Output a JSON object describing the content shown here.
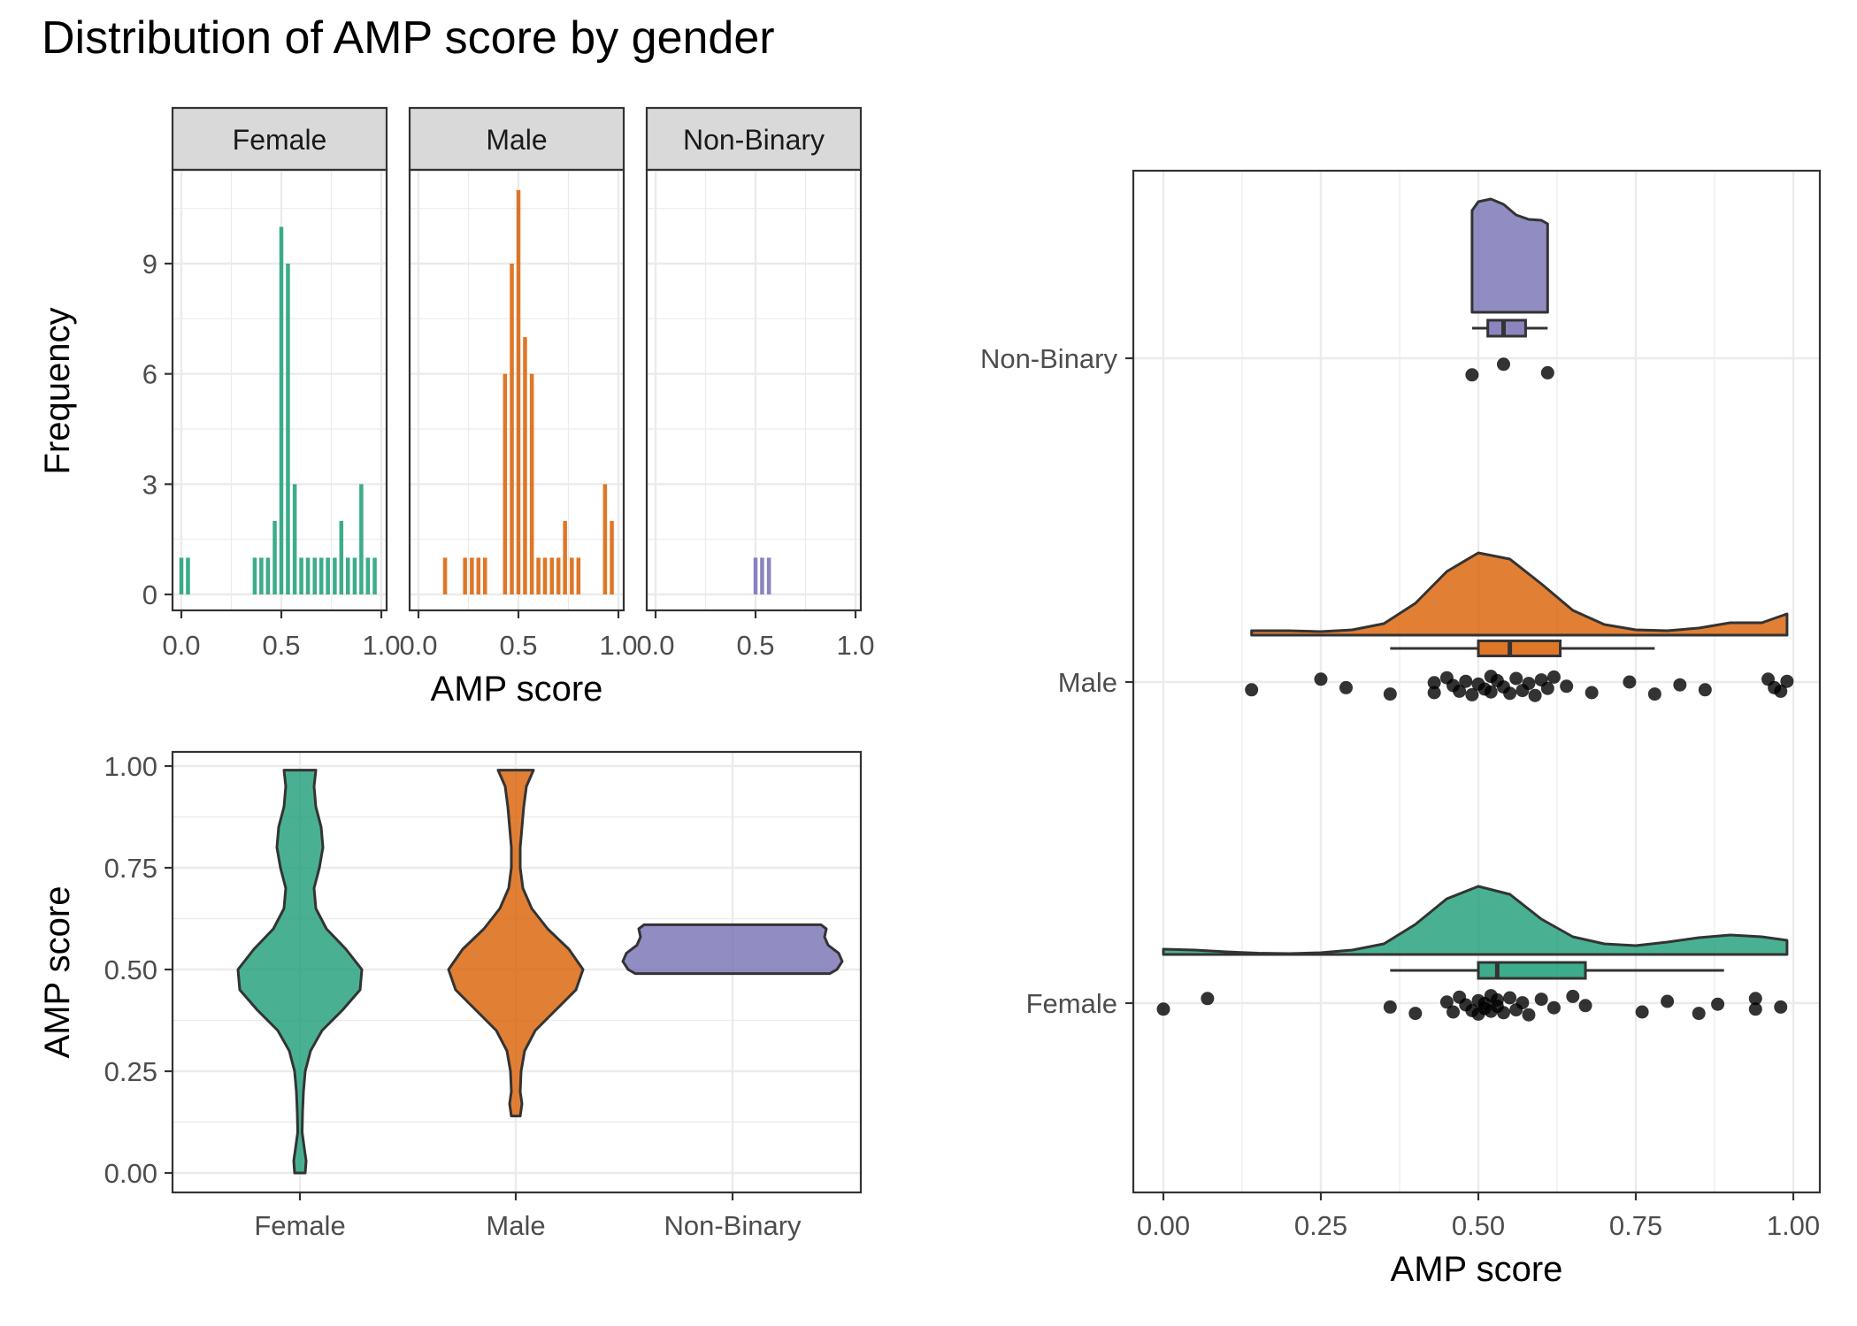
{
  "title": "Distribution of AMP score by gender",
  "colors": {
    "Female": "#1B9E77",
    "Male": "#D95F02",
    "Non-Binary": "#7570B3"
  },
  "chart_data": [
    {
      "type": "bar",
      "name": "histogram",
      "facets": [
        "Female",
        "Male",
        "Non-Binary"
      ],
      "xlabel": "AMP score",
      "ylabel": "Frequency",
      "xlim": [
        0,
        1
      ],
      "ylim": [
        0,
        11
      ],
      "xticks": [
        "0.0",
        "0.5",
        "1.0"
      ],
      "yticks": [
        "0",
        "3",
        "6",
        "9"
      ],
      "bin_width": 0.0333,
      "series": [
        {
          "name": "Female",
          "bins": [
            0.0,
            0.033,
            0.367,
            0.4,
            0.433,
            0.467,
            0.5,
            0.533,
            0.567,
            0.6,
            0.633,
            0.667,
            0.7,
            0.733,
            0.767,
            0.8,
            0.833,
            0.867,
            0.9,
            0.933,
            0.967
          ],
          "counts": [
            1,
            1,
            1,
            1,
            1,
            2,
            10,
            9,
            3,
            1,
            1,
            1,
            1,
            1,
            1,
            2,
            1,
            1,
            3,
            1,
            1
          ]
        },
        {
          "name": "Male",
          "bins": [
            0.133,
            0.233,
            0.267,
            0.3,
            0.333,
            0.433,
            0.467,
            0.5,
            0.533,
            0.567,
            0.6,
            0.633,
            0.667,
            0.7,
            0.733,
            0.767,
            0.8,
            0.833,
            0.933,
            0.967
          ],
          "counts": [
            1,
            1,
            1,
            1,
            1,
            6,
            9,
            11,
            7,
            6,
            1,
            1,
            1,
            1,
            2,
            1,
            1,
            0,
            3,
            2
          ]
        },
        {
          "name": "Non-Binary",
          "bins": [
            0.5,
            0.533,
            0.567
          ],
          "counts": [
            1,
            1,
            1
          ]
        }
      ]
    },
    {
      "type": "violin",
      "name": "violin",
      "categories": [
        "Female",
        "Male",
        "Non-Binary"
      ],
      "ylabel": "AMP score",
      "ylim": [
        0,
        1
      ],
      "yticks": [
        "0.00",
        "0.25",
        "0.50",
        "0.75",
        "1.00"
      ],
      "ranges": {
        "Female": [
          0.0,
          0.99
        ],
        "Male": [
          0.14,
          0.99
        ],
        "Non-Binary": [
          0.49,
          0.61
        ]
      }
    },
    {
      "type": "raincloud",
      "name": "raincloud",
      "categories": [
        "Female",
        "Male",
        "Non-Binary"
      ],
      "xlabel": "AMP score",
      "xlim": [
        0,
        1
      ],
      "xticks": [
        "0.00",
        "0.25",
        "0.50",
        "0.75",
        "1.00"
      ],
      "boxes": {
        "Female": {
          "min": 0.36,
          "q1": 0.5,
          "median": 0.53,
          "q3": 0.67,
          "max": 0.89
        },
        "Male": {
          "min": 0.36,
          "q1": 0.5,
          "median": 0.55,
          "q3": 0.63,
          "max": 0.78
        },
        "Non-Binary": {
          "min": 0.49,
          "q1": 0.515,
          "median": 0.54,
          "q3": 0.575,
          "max": 0.61
        }
      },
      "points": {
        "Female": [
          0.0,
          0.07,
          0.36,
          0.4,
          0.45,
          0.46,
          0.47,
          0.48,
          0.49,
          0.5,
          0.5,
          0.51,
          0.51,
          0.52,
          0.52,
          0.53,
          0.53,
          0.54,
          0.55,
          0.56,
          0.57,
          0.58,
          0.6,
          0.62,
          0.65,
          0.67,
          0.76,
          0.8,
          0.85,
          0.88,
          0.94,
          0.94,
          0.98
        ],
        "Male": [
          0.14,
          0.25,
          0.29,
          0.36,
          0.43,
          0.43,
          0.45,
          0.46,
          0.47,
          0.48,
          0.49,
          0.5,
          0.51,
          0.52,
          0.52,
          0.53,
          0.54,
          0.55,
          0.56,
          0.57,
          0.58,
          0.59,
          0.6,
          0.61,
          0.62,
          0.64,
          0.68,
          0.74,
          0.78,
          0.82,
          0.86,
          0.96,
          0.97,
          0.98,
          0.99
        ],
        "Non-Binary": [
          0.49,
          0.54,
          0.61
        ]
      }
    }
  ]
}
